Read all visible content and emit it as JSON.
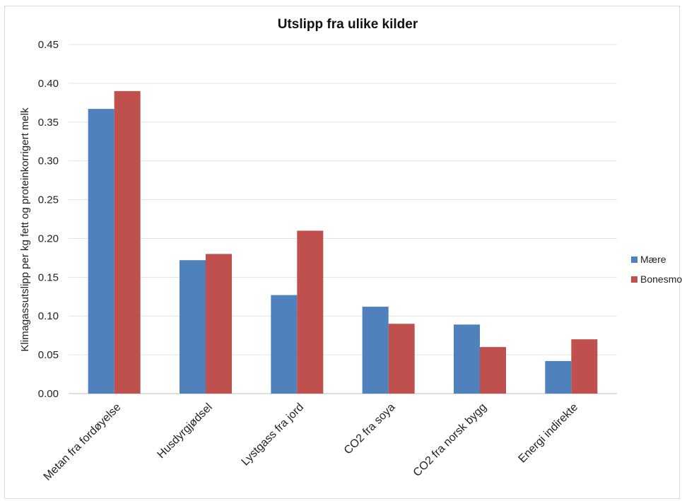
{
  "chart_data": {
    "type": "bar",
    "title": "Utslipp fra ulike kilder",
    "xlabel": "",
    "ylabel": "Klimagassutslipp per kg fett  og proteinkorrigert  melk",
    "categories": [
      "Metan fra fordøyelse",
      "Husdyrgjødsel",
      "Lystgass fra jord",
      "CO2 fra soya",
      "CO2 fra norsk bygg",
      "Energi indirekte"
    ],
    "series": [
      {
        "name": "Mære",
        "color": "#4f81bd",
        "values": [
          0.367,
          0.172,
          0.127,
          0.112,
          0.089,
          0.042
        ]
      },
      {
        "name": "Bonesmo",
        "color": "#c0504d",
        "values": [
          0.39,
          0.18,
          0.21,
          0.09,
          0.06,
          0.07
        ]
      }
    ],
    "ylim": [
      0,
      0.45
    ],
    "yticks": [
      "0.00",
      "0.05",
      "0.10",
      "0.15",
      "0.20",
      "0.25",
      "0.30",
      "0.35",
      "0.40",
      "0.45"
    ],
    "grid": true,
    "legend": "right"
  }
}
